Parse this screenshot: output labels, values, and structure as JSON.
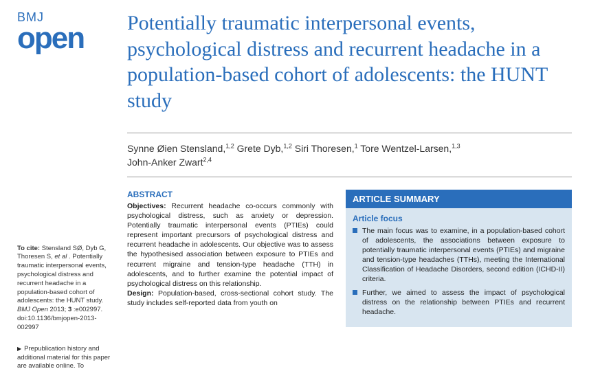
{
  "logo": {
    "top": "BMJ",
    "bottom": "open"
  },
  "citation": {
    "prefix": "To cite:",
    "authors": "Stensland SØ, Dyb G, Thoresen S,",
    "etal": "et al",
    "body": ". Potentially traumatic interpersonal events, psychological distress and recurrent headache in a population-based cohort of adolescents: the HUNT study.",
    "journal": "BMJ Open",
    "year_ref": " 2013;",
    "vol": "3",
    "ref": ":e002997. doi:10.1136/bmjopen-2013-002997"
  },
  "prepub": "Prepublication history and additional material for this paper are available online. To",
  "title": "Potentially traumatic interpersonal events, psychological distress and recurrent headache in a population-based cohort of adolescents: the HUNT study",
  "authors": [
    {
      "name": "Synne Øien Stensland,",
      "aff": "1,2"
    },
    {
      "name": " Grete Dyb,",
      "aff": "1,2"
    },
    {
      "name": " Siri Thoresen,",
      "aff": "1"
    },
    {
      "name": " Tore Wentzel-Larsen,",
      "aff": "1,3"
    },
    {
      "name": " John-Anker Zwart",
      "aff": "2,4"
    }
  ],
  "abstract": {
    "heading": "ABSTRACT",
    "objectives_label": "Objectives:",
    "objectives": " Recurrent headache co-occurs commonly with psychological distress, such as anxiety or depression. Potentially traumatic interpersonal events (PTIEs) could represent important precursors of psychological distress and recurrent headache in adolescents. Our objective was to assess the hypothesised association between exposure to PTIEs and recurrent migraine and tension-type headache (TTH) in adolescents, and to further examine the potential impact of psychological distress on this relationship.",
    "design_label": "Design:",
    "design": " Population-based, cross-sectional cohort study. The study includes self-reported data from youth on"
  },
  "summary": {
    "header": "ARTICLE SUMMARY",
    "focus_heading": "Article focus",
    "focus_items": [
      "The main focus was to examine, in a population-based cohort of adolescents, the associations between exposure to potentially traumatic interpersonal events (PTIEs) and migraine and tension-type headaches (TTHs), meeting the International Classification of Headache Disorders, second edition (ICHD-II) criteria.",
      "Further, we aimed to assess the impact of psychological distress on the relationship between PTIEs and recurrent headache."
    ]
  },
  "colors": {
    "brand": "#2a6ebb",
    "summary_bg": "#d8e5f0"
  }
}
